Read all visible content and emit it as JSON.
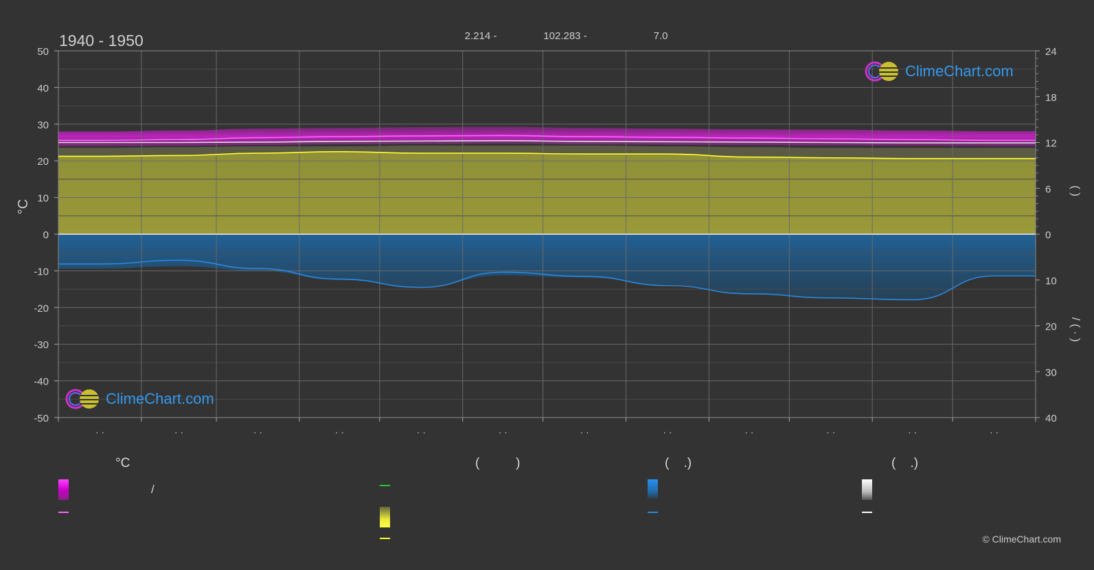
{
  "chart_data": {
    "type": "area",
    "title": "1940 - 1950",
    "header_values": [
      "2.214 -",
      "102.283 -",
      "7.0"
    ],
    "left_axis": {
      "label": "°C",
      "ylim": [
        -50,
        50
      ],
      "ticks": [
        50,
        40,
        30,
        20,
        10,
        0,
        -10,
        -20,
        -30,
        -40,
        -50
      ]
    },
    "right_axis_upper": {
      "label": "(    )",
      "ylim": [
        0,
        24
      ],
      "ticks": [
        24,
        18,
        12,
        6,
        0
      ]
    },
    "right_axis_lower": {
      "label": "/  (  ·  )",
      "ylim": [
        0,
        40
      ],
      "ticks": [
        0,
        10,
        20,
        30,
        40
      ]
    },
    "x_month_labels": [
      "· ·",
      "· ·",
      "· ·",
      "· ·",
      "· ·",
      "· ·",
      "· ·",
      "· ·",
      "· ·",
      "· ·",
      "· ·",
      "· ·"
    ],
    "grid": true,
    "series": [
      {
        "key": "temp_band",
        "kind": "band",
        "color": "#dd22dd",
        "upper": [
          28.0,
          28.3,
          28.8,
          29.0,
          29.2,
          29.3,
          29.0,
          28.8,
          28.6,
          28.5,
          28.3,
          28.1
        ],
        "lower": [
          24.0,
          24.1,
          24.3,
          24.5,
          24.6,
          24.7,
          24.5,
          24.4,
          24.3,
          24.2,
          24.1,
          24.0
        ]
      },
      {
        "key": "temp_mean",
        "kind": "line",
        "color": "#ff66ff",
        "values": [
          25.6,
          25.8,
          26.3,
          26.6,
          26.8,
          26.9,
          26.6,
          26.4,
          26.2,
          26.0,
          25.8,
          25.6
        ]
      },
      {
        "key": "max_temp_line",
        "kind": "line",
        "color": "#e0e0e0",
        "values": [
          25.0,
          25.0,
          25.1,
          25.3,
          25.4,
          25.5,
          25.3,
          25.2,
          25.1,
          25.0,
          24.9,
          24.9
        ]
      },
      {
        "key": "sunshine_hours",
        "kind": "area",
        "color": "#c4c43a",
        "values": [
          10.2,
          10.3,
          10.6,
          10.8,
          10.6,
          10.6,
          10.5,
          10.5,
          10.1,
          10.0,
          9.9,
          9.9
        ]
      },
      {
        "key": "daylight_hours",
        "kind": "area",
        "color": "#8a8a5a",
        "values": [
          11.3,
          11.4,
          11.5,
          11.5,
          11.6,
          11.6,
          11.6,
          11.5,
          11.4,
          11.3,
          11.3,
          11.3
        ]
      },
      {
        "key": "sunshine_line",
        "kind": "line",
        "color": "#ffff33",
        "values": [
          10.2,
          10.3,
          10.6,
          10.8,
          10.6,
          10.6,
          10.5,
          10.5,
          10.1,
          10.0,
          9.9,
          9.9
        ]
      },
      {
        "key": "precip_daily",
        "kind": "area",
        "color": "#1f6aa8",
        "values": [
          7.5,
          7.0,
          8.0,
          10.0,
          11.5,
          9.0,
          9.5,
          11.0,
          13.0,
          14.0,
          14.5,
          9.0
        ]
      },
      {
        "key": "precip_line",
        "kind": "line",
        "color": "#2b88dd",
        "values": [
          6.5,
          5.7,
          7.5,
          9.8,
          11.6,
          8.3,
          9.2,
          11.2,
          13.0,
          13.9,
          14.3,
          9.1
        ]
      }
    ],
    "legend": {
      "headers": [
        "°C",
        "(          )",
        "(    .)",
        "(    .)"
      ],
      "items": [
        {
          "label": "/",
          "color": "#e020e0",
          "type": "gradient"
        },
        {
          "label": "",
          "color": "#ff66ff",
          "type": "line"
        },
        {
          "label": "",
          "color": "#22cc22",
          "type": "line"
        },
        {
          "label": "",
          "color": "#e8e83a",
          "type": "gradient"
        },
        {
          "label": "",
          "color": "#ffff33",
          "type": "line"
        },
        {
          "label": "",
          "color": "#1f7fd6",
          "type": "gradient"
        },
        {
          "label": "",
          "color": "#2b88dd",
          "type": "line"
        },
        {
          "label": "",
          "color": "#e8e8e8",
          "type": "gradient"
        },
        {
          "label": "",
          "color": "#ffffff",
          "type": "line"
        }
      ]
    }
  },
  "branding": {
    "logo_text": "ClimeChart.com",
    "copyright": "© ClimeChart.com"
  }
}
